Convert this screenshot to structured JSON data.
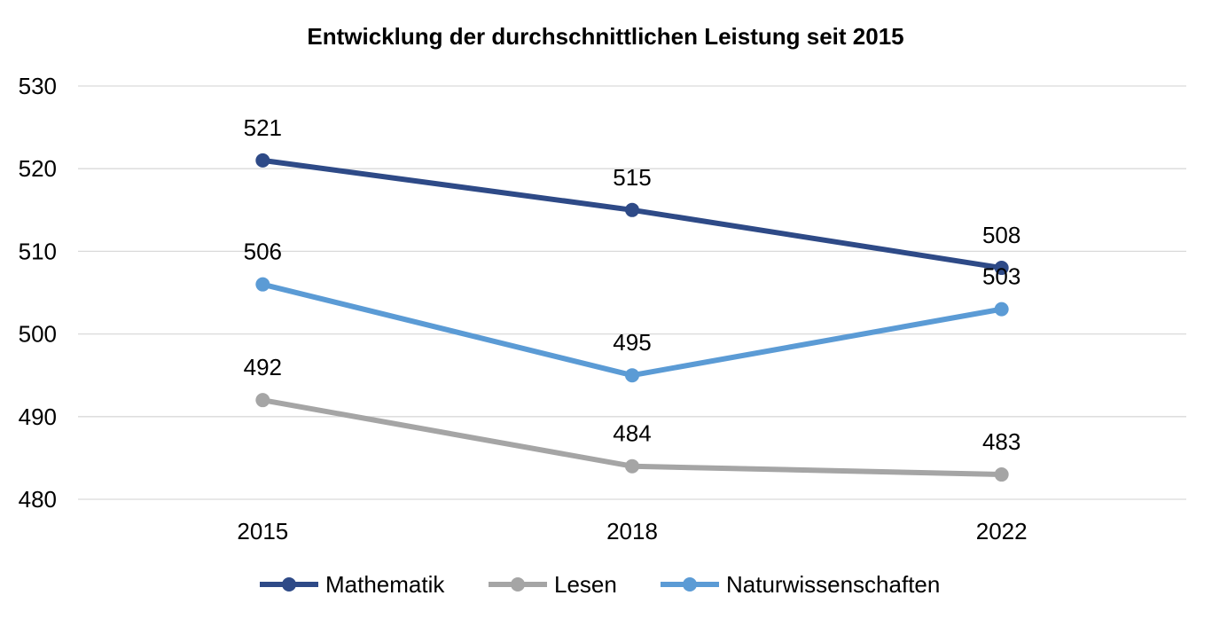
{
  "chart_data": {
    "type": "line",
    "title": "Entwicklung der durchschnittlichen Leistung seit 2015",
    "xlabel": "",
    "ylabel": "",
    "categories": [
      "2015",
      "2018",
      "2022"
    ],
    "ylim": [
      480,
      530
    ],
    "yticks": [
      "480",
      "490",
      "500",
      "510",
      "520",
      "530"
    ],
    "grid": true,
    "legend_position": "bottom",
    "series": [
      {
        "name": "Mathematik",
        "values": [
          521,
          515,
          508
        ],
        "labels": [
          "521",
          "515",
          "508"
        ],
        "color": "#2e4a87"
      },
      {
        "name": "Lesen",
        "values": [
          492,
          484,
          483
        ],
        "labels": [
          "492",
          "484",
          "483"
        ],
        "color": "#a5a5a5"
      },
      {
        "name": "Naturwissenschaften",
        "values": [
          506,
          495,
          503
        ],
        "labels": [
          "506",
          "495",
          "503"
        ],
        "color": "#5b9bd5"
      }
    ]
  }
}
